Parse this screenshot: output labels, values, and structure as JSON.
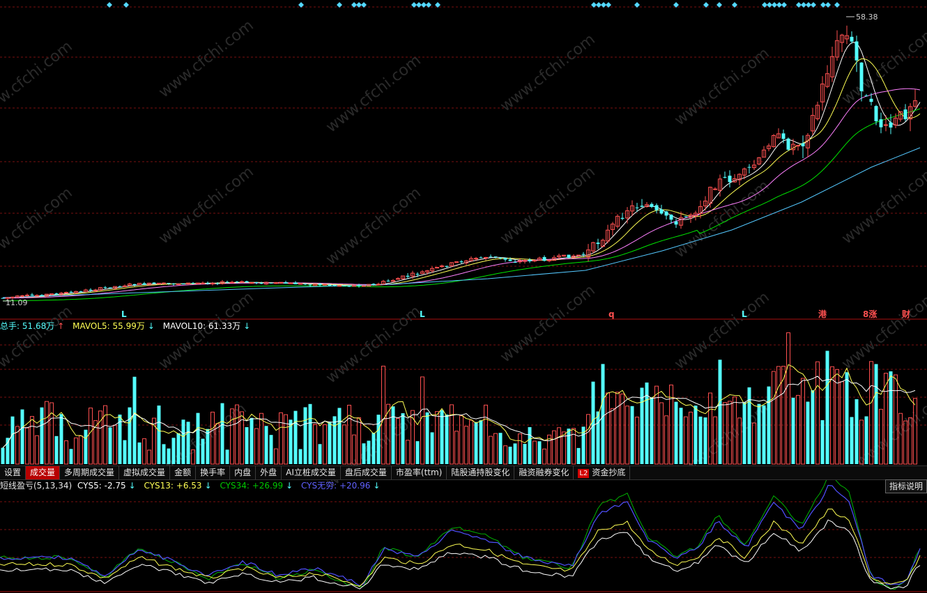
{
  "watermark": "www.cfchi.com",
  "colors": {
    "up": "#ff5050",
    "down": "#54fcfc",
    "ma5": "#ffffff",
    "ma10": "#ffff54",
    "ma20": "#ff80ff",
    "ma30": "#00e600",
    "ma60": "#54c8ff",
    "grid": "#7a1010",
    "cys5": "#ffffff",
    "cys13": "#ffff54",
    "cys34": "#00b400",
    "cys_inf": "#5050ff"
  },
  "price_chart": {
    "max_label": "58.38",
    "min_label": "11.09",
    "signal_labels": [
      {
        "text": "L",
        "color": "#54fcfc"
      },
      {
        "text": "L",
        "color": "#54fcfc"
      },
      {
        "text": "q",
        "color": "#ff5050"
      },
      {
        "text": "L",
        "color": "#54fcfc"
      },
      {
        "text": "港",
        "color": "#ff5050"
      },
      {
        "text": "8涨",
        "color": "#ff5050"
      },
      {
        "text": "财",
        "color": "#ff5050"
      }
    ]
  },
  "volume_legend": {
    "total": "总手: 51.68万",
    "total_arrow": "↑",
    "mavol5": "MAVOL5: 55.99万",
    "mavol5_arrow": "↓",
    "mavol10": "MAVOL10: 61.33万",
    "mavol10_arrow": "↓"
  },
  "tabs": [
    "设置",
    "成交量",
    "多周期成交量",
    "虚拟成交量",
    "金额",
    "换手率",
    "内盘",
    "外盘",
    "AI立桩成交量",
    "盘后成交量",
    "市盈率(ttm)",
    "陆股通持股变化",
    "融资融券变化",
    "资金抄底"
  ],
  "active_tab": "成交量",
  "l2_badge": "L2",
  "cys_legend": {
    "name": "短线盈亏(5,13,34)",
    "cys5": "CYS5: -2.75",
    "cys5_arrow": "↓",
    "cys13": "CYS13: +6.53",
    "cys13_arrow": "↓",
    "cys34": "CYS34: +26.99",
    "cys34_arrow": "↓",
    "cysinf": "CYS无穷: +20.96",
    "cysinf_arrow": "↓"
  },
  "explain_button": "指标说明"
}
